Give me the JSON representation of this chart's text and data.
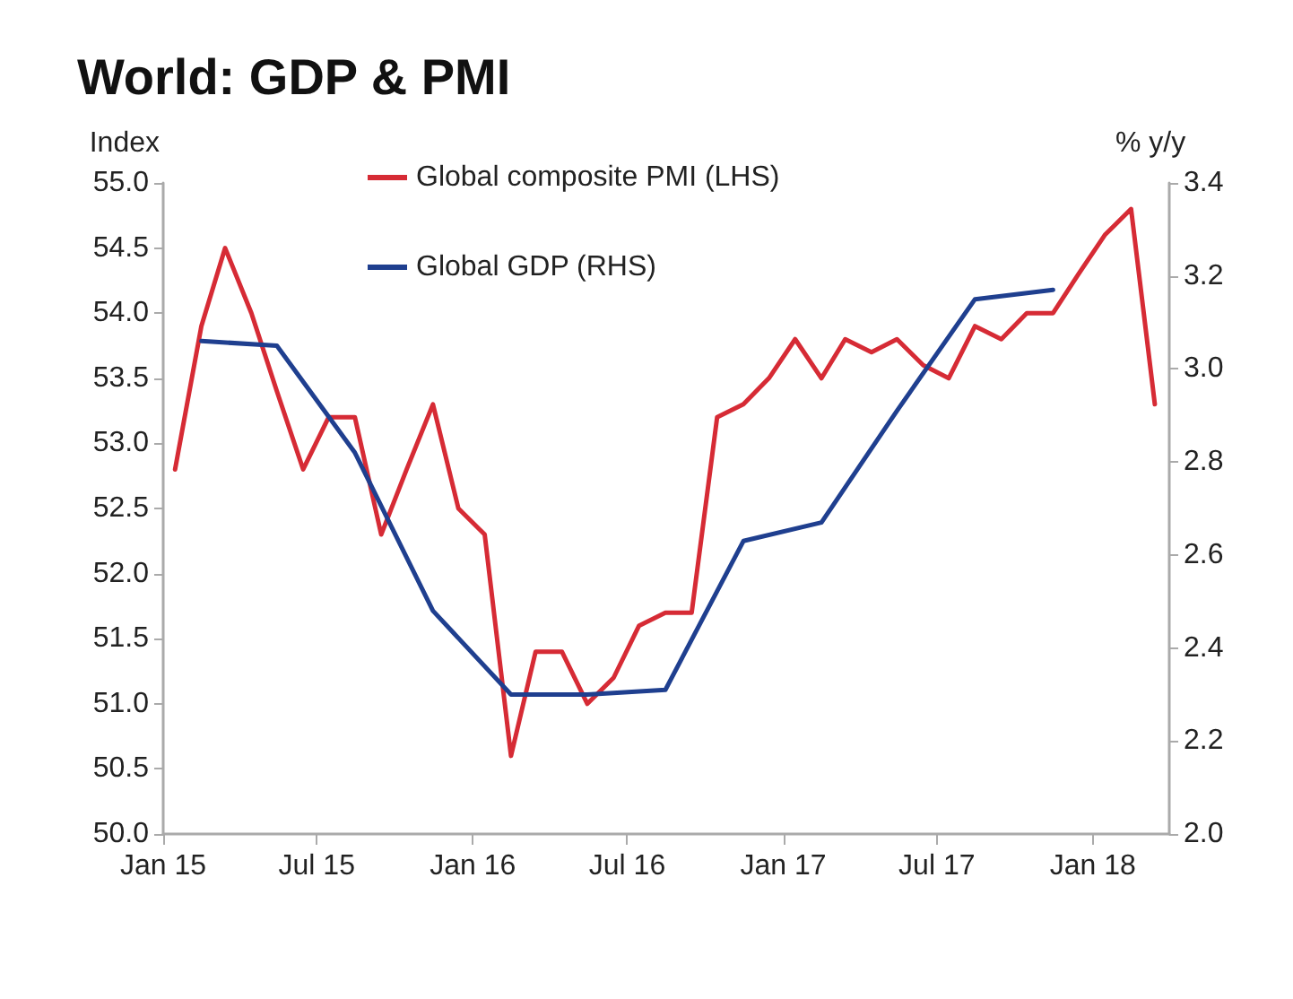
{
  "chart_data": {
    "type": "line",
    "title": "World: GDP & PMI",
    "ylabel": "Index",
    "y2label": "% y/y",
    "xlim": [
      "2015-01",
      "2018-04"
    ],
    "xticks": [
      {
        "value": "2015-01",
        "label": "Jan 15"
      },
      {
        "value": "2015-07",
        "label": "Jul 15"
      },
      {
        "value": "2016-01",
        "label": "Jan 16"
      },
      {
        "value": "2016-07",
        "label": "Jul 16"
      },
      {
        "value": "2017-01",
        "label": "Jan 17"
      },
      {
        "value": "2017-07",
        "label": "Jul 17"
      },
      {
        "value": "2018-01",
        "label": "Jan 18"
      }
    ],
    "ylim": [
      50,
      55
    ],
    "yticks": [
      {
        "value": 50,
        "label": "50.0"
      },
      {
        "value": 50.5,
        "label": "50.5"
      },
      {
        "value": 51,
        "label": "51.0"
      },
      {
        "value": 51.5,
        "label": "51.5"
      },
      {
        "value": 52,
        "label": "52.0"
      },
      {
        "value": 52.5,
        "label": "52.5"
      },
      {
        "value": 53,
        "label": "53.0"
      },
      {
        "value": 53.5,
        "label": "53.5"
      },
      {
        "value": 54,
        "label": "54.0"
      },
      {
        "value": 54.5,
        "label": "54.5"
      },
      {
        "value": 55,
        "label": "55.0"
      }
    ],
    "y2lim": [
      2.0,
      3.4
    ],
    "y2ticks": [
      {
        "value": 2.0,
        "label": "2.0"
      },
      {
        "value": 2.2,
        "label": "2.2"
      },
      {
        "value": 2.4,
        "label": "2.4"
      },
      {
        "value": 2.6,
        "label": "2.6"
      },
      {
        "value": 2.8,
        "label": "2.8"
      },
      {
        "value": 3.0,
        "label": "3.0"
      },
      {
        "value": 3.2,
        "label": "3.2"
      },
      {
        "value": 3.4,
        "label": "3.4"
      }
    ],
    "series": [
      {
        "name": "Global composite PMI (LHS)",
        "color": "#d62b35",
        "x": [
          "2015-01-15",
          "2015-02-15",
          "2015-03-15",
          "2015-04-15",
          "2015-05-15",
          "2015-06-15",
          "2015-07-15",
          "2015-08-15",
          "2015-09-15",
          "2015-10-15",
          "2015-11-15",
          "2015-12-15",
          "2016-01-15",
          "2016-02-15",
          "2016-03-15",
          "2016-04-15",
          "2016-05-15",
          "2016-06-15",
          "2016-07-15",
          "2016-08-15",
          "2016-09-15",
          "2016-10-15",
          "2016-11-15",
          "2016-12-15",
          "2017-01-15",
          "2017-02-15",
          "2017-03-15",
          "2017-04-15",
          "2017-05-15",
          "2017-06-15",
          "2017-07-15",
          "2017-08-15",
          "2017-09-15",
          "2017-10-15",
          "2017-11-15",
          "2017-12-15",
          "2018-01-15",
          "2018-02-15",
          "2018-03-15"
        ],
        "values": [
          52.8,
          53.9,
          54.5,
          54.0,
          53.4,
          52.8,
          53.2,
          53.2,
          52.3,
          52.8,
          53.3,
          52.5,
          52.3,
          50.6,
          51.4,
          51.4,
          51.0,
          51.2,
          51.6,
          51.7,
          51.7,
          53.2,
          53.3,
          53.5,
          53.8,
          53.5,
          53.8,
          53.7,
          53.8,
          53.6,
          53.5,
          53.9,
          53.8,
          54.0,
          54.0,
          54.3,
          54.6,
          54.8,
          53.3
        ]
      },
      {
        "name": "Global GDP (RHS)",
        "color": "#1f3f8f",
        "axis": "y2",
        "x": [
          "2015-02-15",
          "2015-05-15",
          "2015-08-15",
          "2015-11-15",
          "2016-02-15",
          "2016-05-15",
          "2016-08-15",
          "2016-11-15",
          "2017-02-15",
          "2017-05-15",
          "2017-08-15",
          "2017-11-15"
        ],
        "values": [
          3.06,
          3.05,
          2.82,
          2.48,
          2.3,
          2.3,
          2.31,
          2.63,
          2.67,
          2.91,
          3.15,
          3.17
        ]
      }
    ],
    "legend": "top",
    "grid": false,
    "marker": "none",
    "line_style": "solid"
  }
}
